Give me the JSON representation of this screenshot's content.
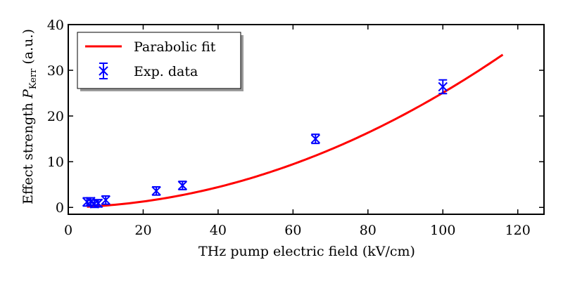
{
  "chart_data": {
    "type": "scatter",
    "title": "",
    "xlabel": "THz pump electric field (kV/cm)",
    "ylabel": {
      "prefix": "Effect strength ",
      "symbol": "P",
      "subscript": "Kerr",
      "suffix": " (a.u.)"
    },
    "xlim": [
      0,
      127
    ],
    "ylim": [
      -1.5,
      40
    ],
    "xticks": [
      0,
      20,
      40,
      60,
      80,
      100,
      120
    ],
    "yticks": [
      0,
      10,
      20,
      30,
      40
    ],
    "grid": false,
    "legend_position": "top-left",
    "series": [
      {
        "name": "Parabolic fit",
        "kind": "line",
        "color": "#ff0000",
        "fit": {
          "a": 0.00233,
          "b": 0.0178,
          "c": 0.0
        },
        "x_range": [
          5,
          116
        ]
      },
      {
        "name": "Exp. data",
        "kind": "errorbar",
        "color": "#0000ff",
        "marker": "x",
        "x": [
          5.0,
          6.0,
          7.0,
          8.0,
          10.0,
          23.5,
          30.5,
          66.0,
          100.0
        ],
        "y": [
          1.2,
          1.3,
          0.8,
          0.9,
          1.6,
          3.6,
          4.8,
          15.0,
          26.4
        ],
        "yerr": [
          0.9,
          0.8,
          0.8,
          0.8,
          0.9,
          0.9,
          0.9,
          1.0,
          1.5
        ]
      }
    ]
  }
}
